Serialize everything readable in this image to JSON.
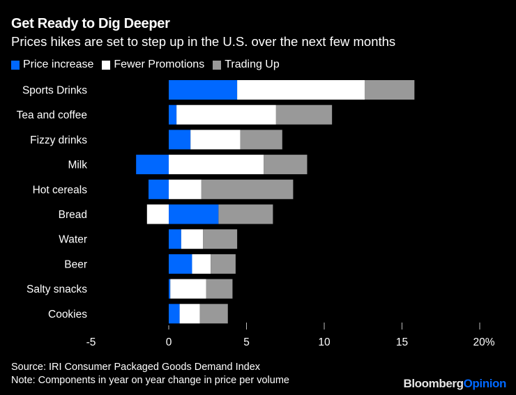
{
  "chart_data": {
    "type": "bar",
    "orientation": "horizontal",
    "stacked": true,
    "title": "Get Ready to Dig Deeper",
    "subtitle": "Prices hikes are set to step up in the U.S. over the next few months",
    "categories": [
      "Sports Drinks",
      "Tea and coffee",
      "Fizzy drinks",
      "Milk",
      "Hot cereals",
      "Bread",
      "Water",
      "Beer",
      "Salty snacks",
      "Cookies"
    ],
    "series": [
      {
        "name": "Price increase",
        "color": "#0068ff",
        "values": [
          4.4,
          0.5,
          1.4,
          -2.1,
          -1.3,
          3.2,
          0.8,
          1.5,
          0.1,
          0.7
        ]
      },
      {
        "name": "Fewer Promotions",
        "color": "#ffffff",
        "values": [
          8.2,
          6.4,
          3.2,
          6.1,
          2.1,
          -1.4,
          1.4,
          1.2,
          2.3,
          1.3
        ]
      },
      {
        "name": "Trading Up",
        "color": "#999999",
        "values": [
          3.2,
          3.6,
          2.7,
          2.8,
          5.9,
          3.5,
          2.2,
          1.6,
          1.7,
          1.8
        ]
      }
    ],
    "xlim": [
      -5,
      20
    ],
    "xticks": [
      -5,
      0,
      5,
      10,
      15,
      20
    ],
    "xtick_labels": [
      "-5",
      "0",
      "5",
      "10",
      "15",
      "20%"
    ],
    "xlabel": "",
    "ylabel": "",
    "grid": false,
    "legend_position": "top-left"
  },
  "footer": {
    "source": "Source: IRI Consumer Packaged Goods Demand Index",
    "note": "Note: Components in year on year change in price per volume"
  },
  "brand": {
    "part1": "Bloomberg",
    "part2": "Opinion"
  }
}
